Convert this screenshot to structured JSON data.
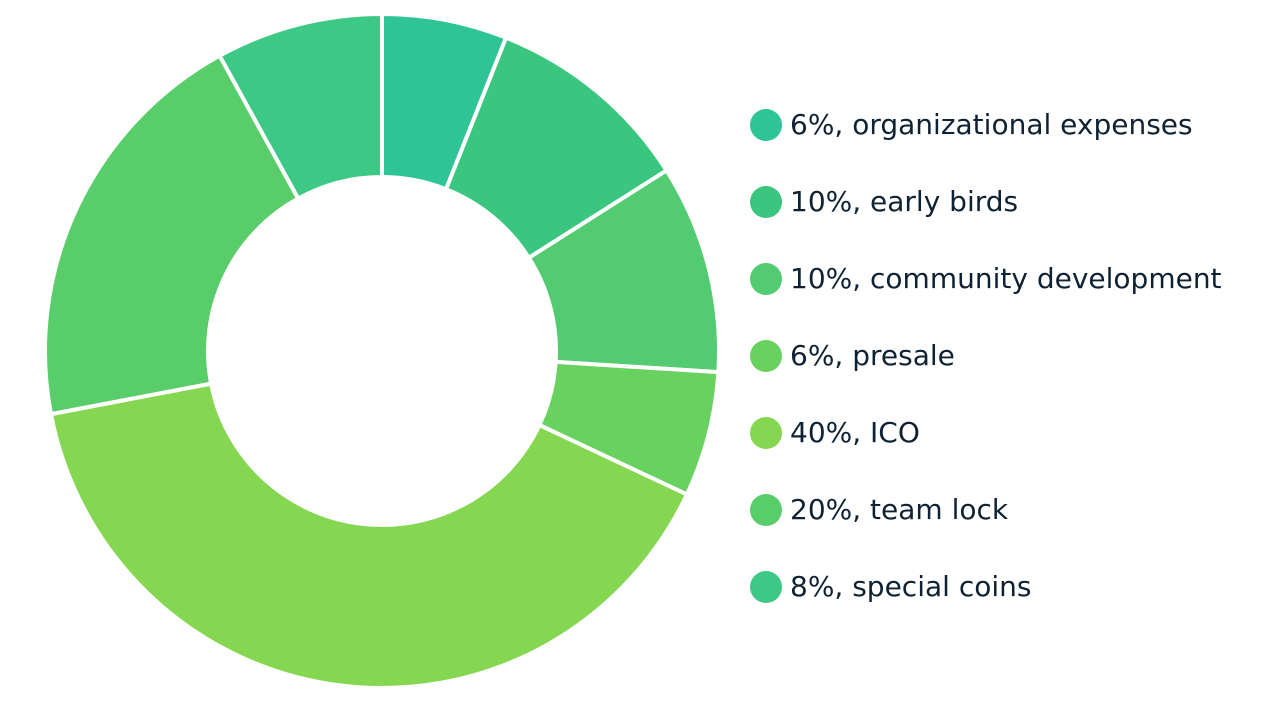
{
  "chart_data": {
    "type": "pie",
    "variant": "donut",
    "legend_position": "right",
    "slices": [
      {
        "value": 6,
        "label": "6%, organizational expenses",
        "color": "#2ec495"
      },
      {
        "value": 10,
        "label": "10%, early birds",
        "color": "#3bc67f"
      },
      {
        "value": 10,
        "label": "10%, community development",
        "color": "#53cb70"
      },
      {
        "value": 6,
        "label": "6%, presale",
        "color": "#69d160"
      },
      {
        "value": 40,
        "label": "40%, ICO",
        "color": "#85d751"
      },
      {
        "value": 20,
        "label": "20%, team lock",
        "color": "#5acd6b"
      },
      {
        "value": 8,
        "label": "8%, special coins",
        "color": "#3ec885"
      }
    ]
  }
}
